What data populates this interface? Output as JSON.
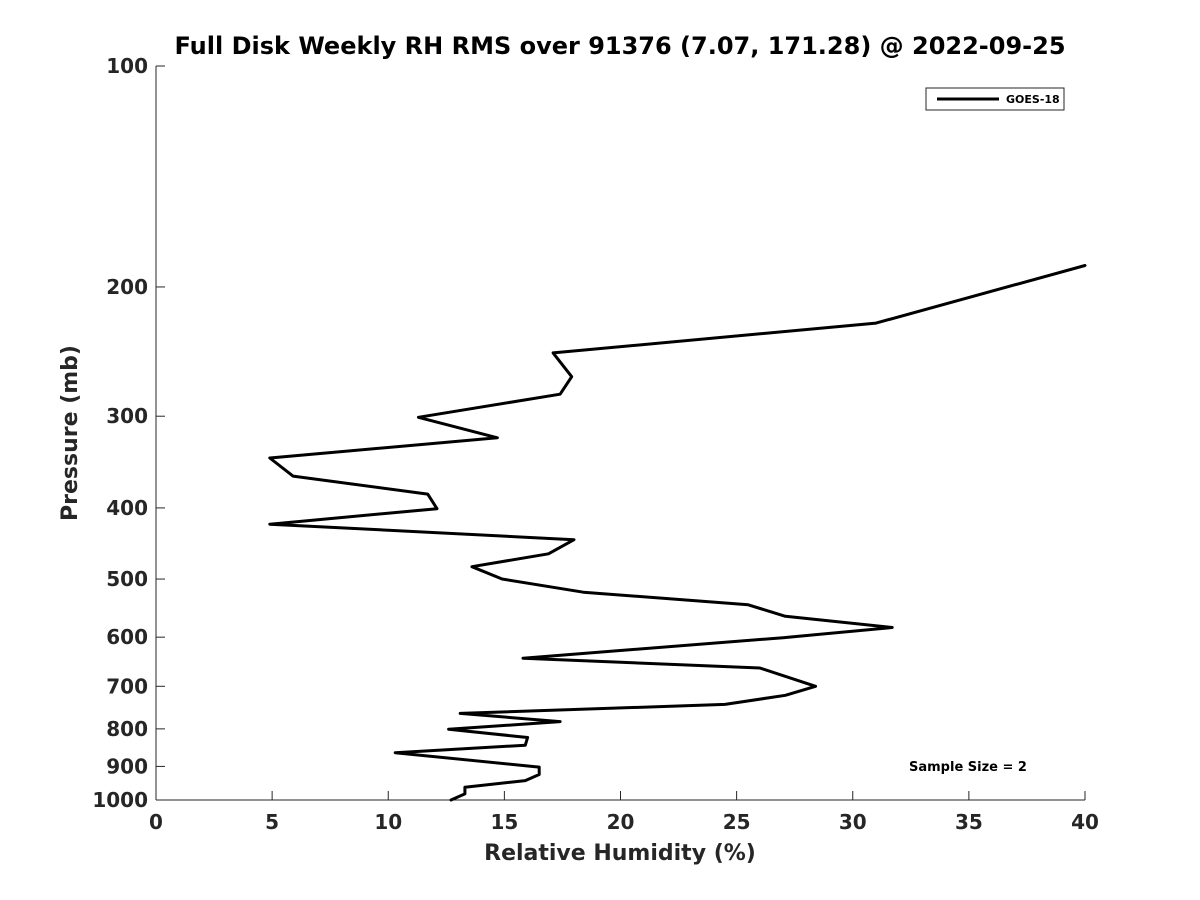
{
  "chart_data": {
    "type": "line",
    "title": "Full Disk Weekly RH RMS over 91376 (7.07, 171.28) @ 2022-09-25",
    "xlabel": "Relative Humidity (%)",
    "ylabel": "Pressure (mb)",
    "xlim": [
      0,
      40
    ],
    "ylim": [
      1000,
      100
    ],
    "yscale": "log",
    "xticks": [
      0,
      5,
      10,
      15,
      20,
      25,
      30,
      35,
      40
    ],
    "yticks": [
      100,
      200,
      300,
      400,
      500,
      600,
      700,
      800,
      900,
      1000
    ],
    "grid": false,
    "legend_position": "top-right",
    "annotation": "Sample Size = 2",
    "series": [
      {
        "name": "GOES-18",
        "color": "#000000",
        "points": [
          {
            "x": 40.0,
            "y": 187
          },
          {
            "x": 31.0,
            "y": 224
          },
          {
            "x": 17.1,
            "y": 246
          },
          {
            "x": 17.9,
            "y": 265
          },
          {
            "x": 17.4,
            "y": 280
          },
          {
            "x": 11.3,
            "y": 301
          },
          {
            "x": 14.7,
            "y": 321
          },
          {
            "x": 4.9,
            "y": 342
          },
          {
            "x": 5.9,
            "y": 362
          },
          {
            "x": 11.7,
            "y": 383
          },
          {
            "x": 12.1,
            "y": 401
          },
          {
            "x": 4.9,
            "y": 421
          },
          {
            "x": 18.0,
            "y": 442
          },
          {
            "x": 16.9,
            "y": 462
          },
          {
            "x": 13.6,
            "y": 481
          },
          {
            "x": 14.9,
            "y": 500
          },
          {
            "x": 18.4,
            "y": 521
          },
          {
            "x": 25.5,
            "y": 542
          },
          {
            "x": 27.1,
            "y": 562
          },
          {
            "x": 31.7,
            "y": 582
          },
          {
            "x": 27.0,
            "y": 601
          },
          {
            "x": 15.8,
            "y": 641
          },
          {
            "x": 26.0,
            "y": 661
          },
          {
            "x": 28.4,
            "y": 700
          },
          {
            "x": 27.1,
            "y": 720
          },
          {
            "x": 24.5,
            "y": 741
          },
          {
            "x": 13.1,
            "y": 762
          },
          {
            "x": 17.4,
            "y": 782
          },
          {
            "x": 12.6,
            "y": 801
          },
          {
            "x": 16.0,
            "y": 822
          },
          {
            "x": 15.9,
            "y": 842
          },
          {
            "x": 10.3,
            "y": 862
          },
          {
            "x": 16.5,
            "y": 902
          },
          {
            "x": 16.5,
            "y": 923
          },
          {
            "x": 15.9,
            "y": 941
          },
          {
            "x": 13.3,
            "y": 961
          },
          {
            "x": 13.3,
            "y": 981
          },
          {
            "x": 12.7,
            "y": 1000
          }
        ]
      }
    ]
  }
}
